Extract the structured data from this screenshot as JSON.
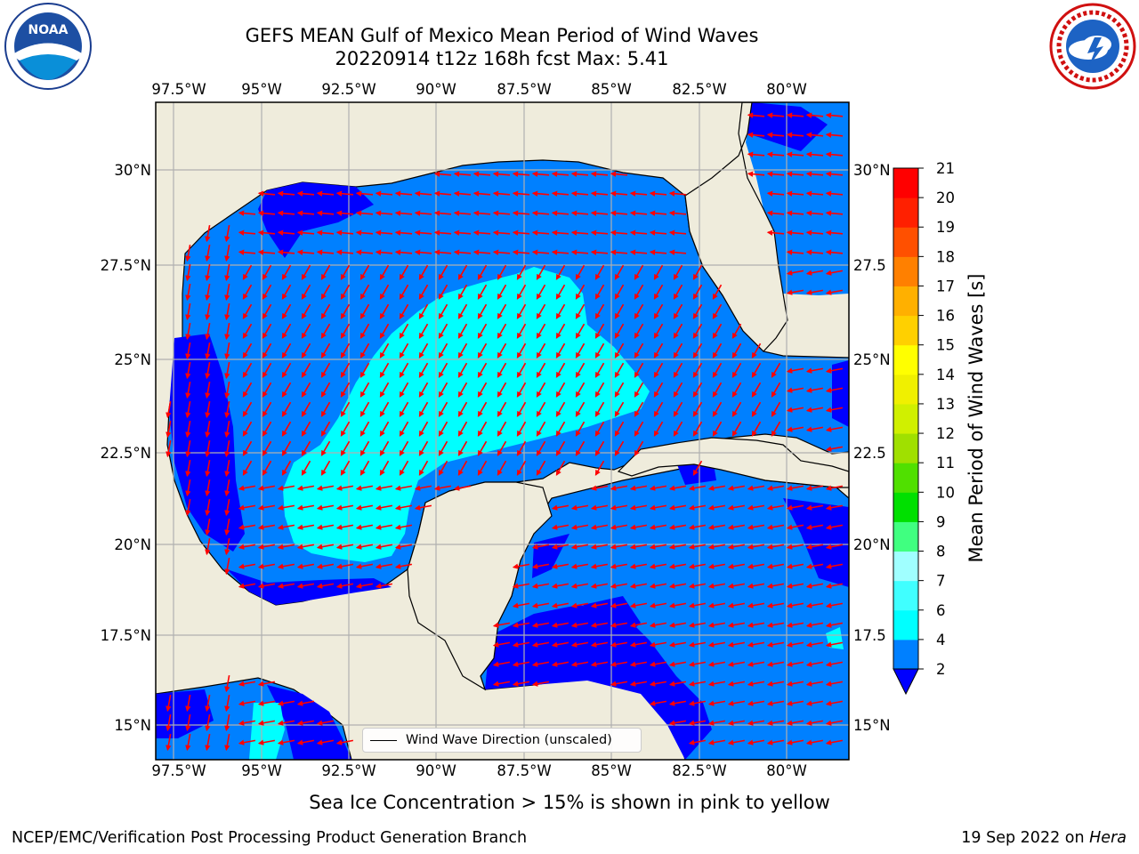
{
  "title": {
    "line1": "GEFS MEAN Gulf of Mexico Mean Period of Wind Waves",
    "line2": "20220914 t12z 168h fcst   Max: 5.41"
  },
  "logos": {
    "noaa": {
      "icon": "noaa-logo-icon",
      "text": "NOAA"
    },
    "nws": {
      "icon": "nws-logo-icon"
    }
  },
  "map": {
    "lon_labels": [
      "97.5°W",
      "95°W",
      "92.5°W",
      "90°W",
      "87.5°W",
      "85°W",
      "82.5°W",
      "80°W"
    ],
    "lat_labels_left": [
      "30°N",
      "27.5°N",
      "25°N",
      "22.5°N",
      "20°N",
      "17.5°N",
      "15°N"
    ],
    "lat_labels_right": [
      "30°N",
      "27.5",
      "25°N",
      "22.5",
      "20°N",
      "17.5",
      "15°N"
    ],
    "land_color": "#efecdc",
    "arrow_color": "#ff0000",
    "grid_color": "#b0b0b0"
  },
  "legend": {
    "label": "Wind Wave Direction (unscaled)"
  },
  "colorbar": {
    "label": "Mean Period of Wind Waves [s]",
    "ticks": [
      "2",
      "4",
      "6",
      "7",
      "8",
      "9",
      "10",
      "11",
      "12",
      "13",
      "14",
      "15",
      "16",
      "17",
      "18",
      "19",
      "20",
      "21"
    ],
    "colors": [
      "#0080ff",
      "#00ffff",
      "#40ffff",
      "#a0ffff",
      "#40ff80",
      "#00e000",
      "#50e000",
      "#a0e000",
      "#d0f000",
      "#f0f000",
      "#ffff00",
      "#ffd000",
      "#ffb000",
      "#ff8000",
      "#ff5000",
      "#ff2000",
      "#ff0000"
    ],
    "under_color": "#0000ff"
  },
  "ice_note": "Sea Ice Concentration > 15% is shown in pink to yellow",
  "footer": {
    "left": "NCEP/EMC/Verification Post Processing Product Generation Branch",
    "right_prefix": "19 Sep 2022 on ",
    "right_host": "Hera"
  }
}
